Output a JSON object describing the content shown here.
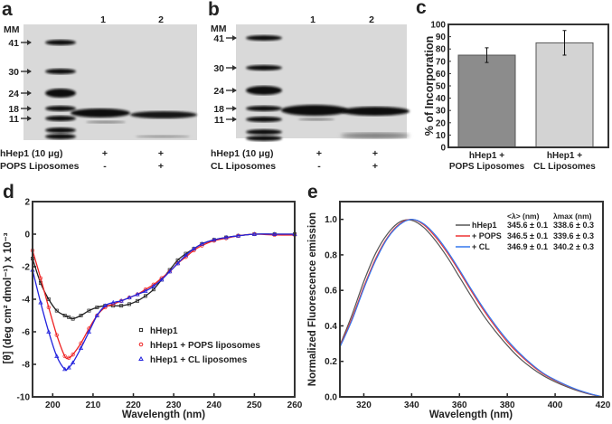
{
  "panels": {
    "a": {
      "label": "a",
      "mm_label": "MM",
      "lanes": [
        "1",
        "2"
      ],
      "markers": [
        "41",
        "30",
        "24",
        "18",
        "11"
      ],
      "rows": [
        {
          "name": "hHep1 (10 μg)",
          "values": [
            "+",
            "+"
          ]
        },
        {
          "name": "POPS Liposomes",
          "values": [
            "-",
            "+"
          ]
        }
      ]
    },
    "b": {
      "label": "b",
      "mm_label": "MM",
      "lanes": [
        "1",
        "2"
      ],
      "markers": [
        "41",
        "30",
        "24",
        "18",
        "11"
      ],
      "rows": [
        {
          "name": "hHep1 (10 μg)",
          "values": [
            "+",
            "+"
          ]
        },
        {
          "name": "CL Liposomes",
          "values": [
            "-",
            "+"
          ]
        }
      ]
    },
    "c": {
      "label": "c"
    },
    "d": {
      "label": "d"
    },
    "e": {
      "label": "e"
    }
  },
  "chart_data": [
    {
      "id": "c",
      "type": "bar",
      "categories": [
        [
          "hHep1 +",
          "POPS Liposomes"
        ],
        [
          "hHep1 +",
          "CL Liposomes"
        ]
      ],
      "values": [
        75,
        85
      ],
      "errors": [
        6,
        10
      ],
      "colors": [
        "#8c8c8c",
        "#d3d3d3"
      ],
      "xlabel": "",
      "ylabel": "% of Incorporation",
      "ylim": [
        0,
        100
      ],
      "yticks": [
        "0",
        "10",
        "20",
        "30",
        "40",
        "50",
        "60",
        "70",
        "80",
        "90",
        "100"
      ]
    },
    {
      "id": "d",
      "type": "line",
      "xlabel": "Wavelength (nm)",
      "ylabel": "[θ] (deg cm² dmol⁻¹) x 10⁻³",
      "xlim": [
        195,
        260
      ],
      "ylim": [
        -10,
        2
      ],
      "xticks": [
        "200",
        "210",
        "220",
        "230",
        "240",
        "250",
        "260"
      ],
      "yticks": [
        "-10",
        "-8",
        "-6",
        "-4",
        "-2",
        "0",
        "2"
      ],
      "legend": "center-right",
      "x": [
        195,
        197,
        199,
        201,
        203,
        204,
        205,
        207,
        209,
        211,
        213,
        215,
        217,
        219,
        221,
        223,
        225,
        227,
        229,
        231,
        233,
        235,
        237,
        240,
        243,
        246,
        250,
        255,
        260
      ],
      "series": [
        {
          "name": "hHep1",
          "color": "#222222",
          "marker": "square",
          "values": [
            -1.5,
            -3.0,
            -4.0,
            -4.7,
            -5.0,
            -5.1,
            -5.2,
            -5.0,
            -4.7,
            -4.5,
            -4.4,
            -4.4,
            -4.4,
            -4.3,
            -4.1,
            -3.8,
            -3.4,
            -2.8,
            -2.2,
            -1.6,
            -1.2,
            -0.9,
            -0.6,
            -0.35,
            -0.2,
            -0.1,
            0,
            0,
            0
          ]
        },
        {
          "name": "hHep1 + POPS liposomes",
          "color": "#ee2222",
          "marker": "circle",
          "values": [
            -1.0,
            -2.7,
            -4.5,
            -6.2,
            -7.5,
            -7.6,
            -7.4,
            -6.7,
            -5.8,
            -5.0,
            -4.5,
            -4.3,
            -4.1,
            -3.9,
            -3.7,
            -3.4,
            -3.1,
            -2.7,
            -2.3,
            -1.8,
            -1.4,
            -1.0,
            -0.7,
            -0.4,
            -0.25,
            -0.1,
            0,
            -0.05,
            -0.05
          ]
        },
        {
          "name": "hHep1 + CL liposomes",
          "color": "#2222dd",
          "marker": "triangle",
          "values": [
            -2.2,
            -4.2,
            -6.0,
            -7.5,
            -8.3,
            -8.2,
            -7.9,
            -7.0,
            -6.0,
            -5.0,
            -4.4,
            -4.2,
            -4.1,
            -3.9,
            -3.7,
            -3.5,
            -3.2,
            -2.8,
            -2.3,
            -1.8,
            -1.3,
            -0.9,
            -0.6,
            -0.35,
            -0.2,
            -0.1,
            0,
            0,
            0
          ]
        }
      ]
    },
    {
      "id": "e",
      "type": "line",
      "xlabel": "Wavelength (nm)",
      "ylabel": "Normalized Fluorescence emission",
      "xlim": [
        310,
        420
      ],
      "ylim": [
        0,
        1.1
      ],
      "xticks": [
        "320",
        "340",
        "360",
        "380",
        "400",
        "420"
      ],
      "yticks": [
        "0.0",
        "0.2",
        "0.4",
        "0.6",
        "0.8",
        "1.0"
      ],
      "legend": "top-right",
      "legend_headers": [
        "<λ> (nm)",
        "λmax (nm)"
      ],
      "x": [
        310,
        315,
        320,
        325,
        330,
        335,
        340,
        345,
        350,
        355,
        360,
        365,
        370,
        375,
        380,
        385,
        390,
        395,
        400,
        405,
        410,
        415,
        420
      ],
      "series": [
        {
          "name": "hHep1",
          "color": "#555555",
          "mean": "345.6 ± 0.1",
          "max": "338.6 ± 0.3",
          "values": [
            0.29,
            0.46,
            0.65,
            0.81,
            0.92,
            0.985,
            0.995,
            0.955,
            0.88,
            0.785,
            0.675,
            0.565,
            0.46,
            0.37,
            0.29,
            0.22,
            0.165,
            0.12,
            0.085,
            0.056,
            0.032,
            0.013,
            0
          ]
        },
        {
          "name": "+ POPS",
          "color": "#ee3333",
          "mean": "346.5 ± 0.1",
          "max": "339.6 ± 0.3",
          "values": [
            0.285,
            0.44,
            0.62,
            0.78,
            0.9,
            0.975,
            1.0,
            0.97,
            0.9,
            0.81,
            0.705,
            0.595,
            0.49,
            0.395,
            0.31,
            0.24,
            0.18,
            0.13,
            0.093,
            0.062,
            0.036,
            0.015,
            0
          ]
        },
        {
          "name": "+ CL",
          "color": "#3377ee",
          "mean": "346.9 ± 0.1",
          "max": "340.2 ± 0.3",
          "values": [
            0.28,
            0.43,
            0.61,
            0.77,
            0.895,
            0.97,
            1.0,
            0.975,
            0.91,
            0.82,
            0.715,
            0.605,
            0.5,
            0.405,
            0.32,
            0.248,
            0.186,
            0.134,
            0.096,
            0.064,
            0.037,
            0.016,
            0
          ]
        }
      ]
    }
  ]
}
